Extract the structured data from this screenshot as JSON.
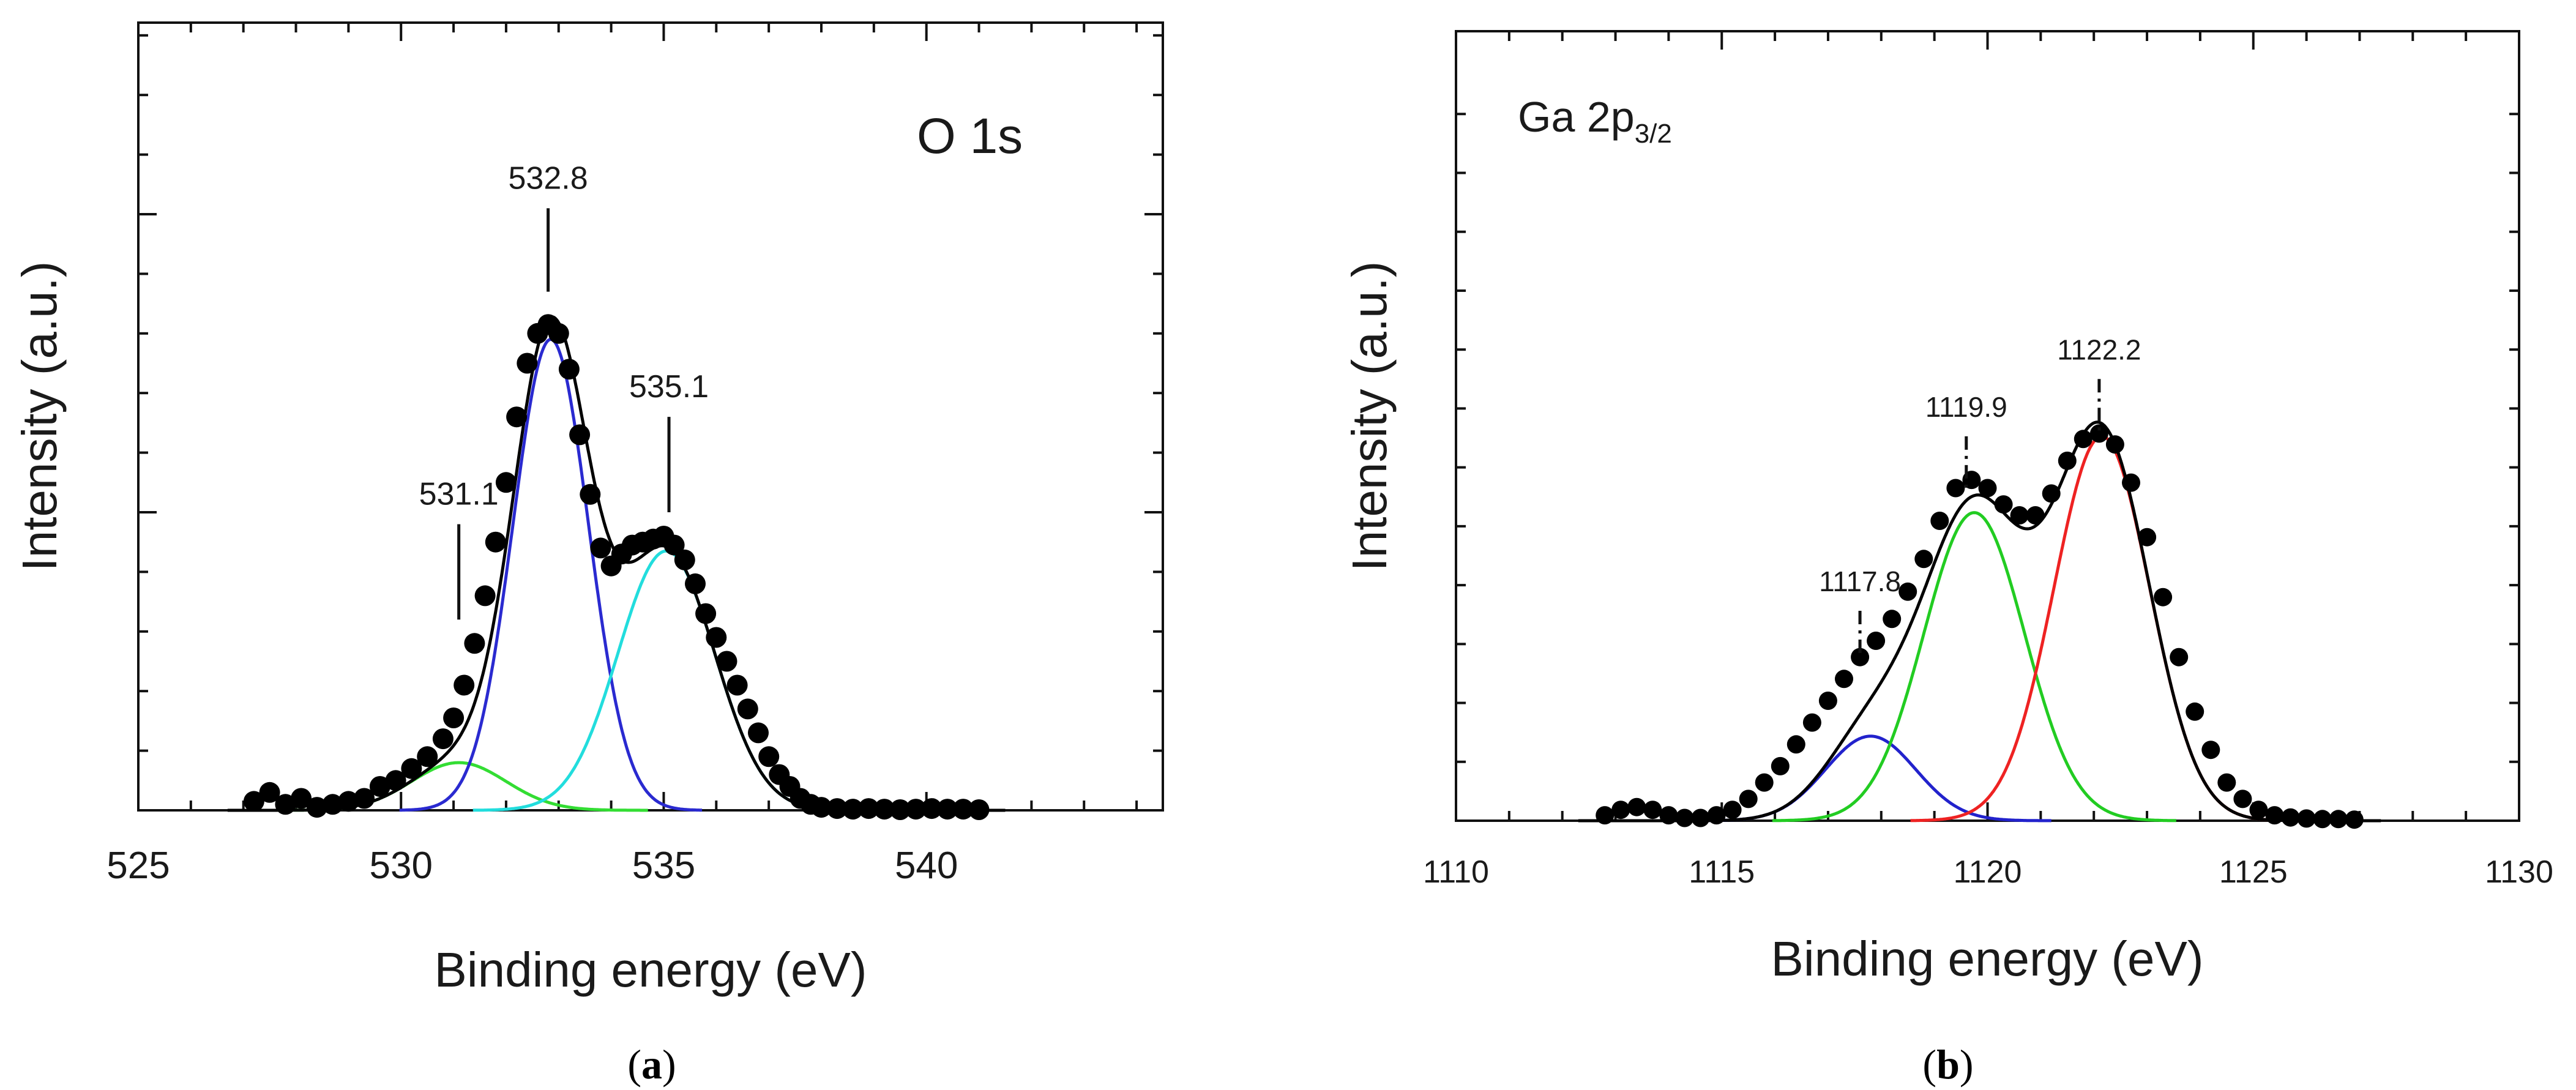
{
  "chart_data": [
    {
      "id": "a",
      "type": "line",
      "caption_open": "(",
      "caption_letter": "a",
      "caption_close": ")",
      "panel_label": "O 1s",
      "xlabel": "Binding energy (eV)",
      "ylabel": "Intensity (a.u.)",
      "xlim": [
        525,
        544.5
      ],
      "ylim": [
        0,
        1
      ],
      "xticks": [
        525,
        530,
        535,
        540
      ],
      "xticks_minor_step": 1,
      "yticks_major": [
        0.5,
        1.0
      ],
      "yticks_minor_step": 0.1,
      "components": [
        {
          "name": "component 531.1 eV",
          "color": "#33dd33",
          "center": 531.1,
          "amplitude": 0.08,
          "sigma": 0.9
        },
        {
          "name": "component 532.8 eV",
          "color": "#2a2ad0",
          "center": 532.85,
          "amplitude": 0.79,
          "sigma": 0.72
        },
        {
          "name": "component 535.1 eV",
          "color": "#22dddd",
          "center": 535.05,
          "amplitude": 0.435,
          "sigma": 0.92
        }
      ],
      "fit_color": "#000000",
      "experimental": {
        "x": [
          527.2,
          527.5,
          527.8,
          528.1,
          528.4,
          528.7,
          529.0,
          529.3,
          529.6,
          529.9,
          530.2,
          530.5,
          530.8,
          531.0,
          531.2,
          531.4,
          531.6,
          531.8,
          532.0,
          532.2,
          532.4,
          532.6,
          532.8,
          533.0,
          533.2,
          533.4,
          533.6,
          533.8,
          534.0,
          534.2,
          534.4,
          534.6,
          534.8,
          535.0,
          535.2,
          535.4,
          535.6,
          535.8,
          536.0,
          536.2,
          536.4,
          536.6,
          536.8,
          537.0,
          537.2,
          537.4,
          537.6,
          537.8,
          538.0,
          538.3,
          538.6,
          538.9,
          539.2,
          539.5,
          539.8,
          540.1,
          540.4,
          540.7,
          541.0
        ],
        "y": [
          0.015,
          0.03,
          0.01,
          0.02,
          0.005,
          0.01,
          0.015,
          0.02,
          0.04,
          0.05,
          0.07,
          0.09,
          0.12,
          0.155,
          0.21,
          0.28,
          0.36,
          0.45,
          0.55,
          0.66,
          0.75,
          0.8,
          0.815,
          0.8,
          0.74,
          0.63,
          0.53,
          0.44,
          0.41,
          0.43,
          0.445,
          0.45,
          0.455,
          0.46,
          0.445,
          0.42,
          0.38,
          0.33,
          0.29,
          0.25,
          0.21,
          0.17,
          0.13,
          0.09,
          0.06,
          0.04,
          0.02,
          0.01,
          0.005,
          0.003,
          0.002,
          0.003,
          0.002,
          0.001,
          0.002,
          0.003,
          0.002,
          0.002,
          0.001
        ]
      },
      "annotations": [
        {
          "text": "531.1",
          "x": 531.1,
          "y_top": 0.48,
          "y_bottom": 0.32,
          "dashed": false
        },
        {
          "text": "532.8",
          "x": 532.8,
          "y_top": 1.01,
          "y_bottom": 0.87,
          "dashed": false
        },
        {
          "text": "535.1",
          "x": 535.1,
          "y_top": 0.66,
          "y_bottom": 0.5,
          "dashed": false
        }
      ]
    },
    {
      "id": "b",
      "type": "line",
      "caption_open": "(",
      "caption_letter": "b",
      "caption_close": ")",
      "panel_label_main": "Ga 2p",
      "panel_label_sub": "3/2",
      "xlabel": "Binding energy (eV)",
      "ylabel": "Intensity (a.u.)",
      "xlim": [
        1110,
        1130
      ],
      "ylim": [
        0,
        1
      ],
      "xticks": [
        1110,
        1115,
        1120,
        1125,
        1130
      ],
      "xticks_minor_step": 1,
      "yticks_major": [],
      "yticks_minor_step": 0.108,
      "components": [
        {
          "name": "component 1117.8 eV",
          "color": "#2222cc",
          "center": 1117.8,
          "amplitude": 0.155,
          "sigma": 0.85
        },
        {
          "name": "component 1119.9 eV",
          "color": "#22cc22",
          "center": 1119.75,
          "amplitude": 0.565,
          "sigma": 0.95
        },
        {
          "name": "component 1122.2 eV",
          "color": "#ee2222",
          "center": 1122.15,
          "amplitude": 0.705,
          "sigma": 0.9
        }
      ],
      "fit_color": "#000000",
      "experimental": {
        "x": [
          1112.8,
          1113.1,
          1113.4,
          1113.7,
          1114.0,
          1114.3,
          1114.6,
          1114.9,
          1115.2,
          1115.5,
          1115.8,
          1116.1,
          1116.4,
          1116.7,
          1117.0,
          1117.3,
          1117.6,
          1117.9,
          1118.2,
          1118.5,
          1118.8,
          1119.1,
          1119.4,
          1119.7,
          1120.0,
          1120.3,
          1120.6,
          1120.9,
          1121.2,
          1121.5,
          1121.8,
          1122.1,
          1122.4,
          1122.7,
          1123.0,
          1123.3,
          1123.6,
          1123.9,
          1124.2,
          1124.5,
          1124.8,
          1125.1,
          1125.4,
          1125.7,
          1126.0,
          1126.3,
          1126.6,
          1126.9
        ],
        "y": [
          0.01,
          0.02,
          0.025,
          0.02,
          0.01,
          0.005,
          0.005,
          0.01,
          0.02,
          0.04,
          0.07,
          0.1,
          0.14,
          0.18,
          0.22,
          0.26,
          0.3,
          0.33,
          0.37,
          0.42,
          0.48,
          0.55,
          0.61,
          0.625,
          0.61,
          0.58,
          0.56,
          0.56,
          0.6,
          0.66,
          0.7,
          0.71,
          0.69,
          0.62,
          0.52,
          0.41,
          0.3,
          0.2,
          0.13,
          0.07,
          0.04,
          0.02,
          0.01,
          0.006,
          0.004,
          0.003,
          0.003,
          0.002
        ]
      },
      "annotations": [
        {
          "text": "1117.8",
          "x": 1117.6,
          "y_top": 0.385,
          "y_bottom": 0.3,
          "dashed": true
        },
        {
          "text": "1119.9",
          "x": 1119.6,
          "y_top": 0.705,
          "y_bottom": 0.6,
          "dashed": true
        },
        {
          "text": "1122.2",
          "x": 1122.1,
          "y_top": 0.81,
          "y_bottom": 0.71,
          "dashed": true
        }
      ]
    }
  ]
}
